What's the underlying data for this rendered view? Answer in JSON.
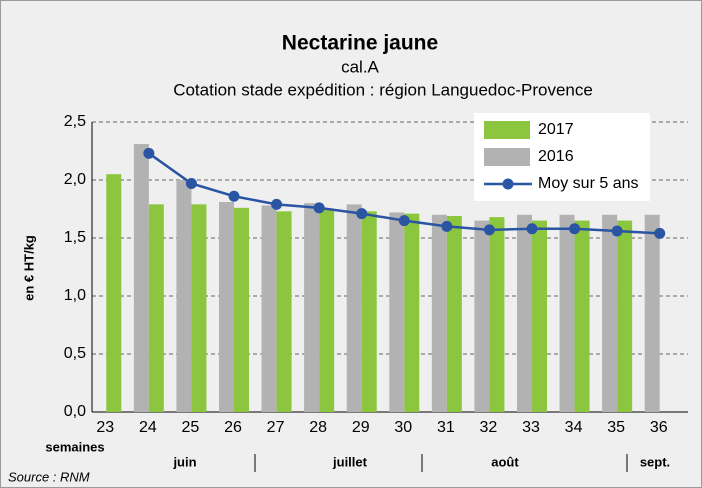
{
  "chart_data": {
    "type": "bar",
    "title": "Nectarine jaune",
    "subtitle": [
      "cal.A",
      "Cotation stade expédition : région Languedoc-Provence"
    ],
    "y_label": "en € HT/kg",
    "x_label": "semaines",
    "months": [
      "juin",
      "juillet",
      "août",
      "sept."
    ],
    "source": "Source : RNM",
    "categories": [
      "23",
      "24",
      "25",
      "26",
      "27",
      "28",
      "29",
      "30",
      "31",
      "32",
      "33",
      "34",
      "35",
      "36"
    ],
    "series": [
      {
        "name": "2016",
        "color": "#b2b2b2",
        "values": [
          null,
          2.31,
          2.0,
          1.81,
          1.78,
          1.8,
          1.79,
          1.72,
          1.7,
          1.65,
          1.7,
          1.7,
          1.7,
          1.7
        ]
      },
      {
        "name": "2017",
        "color": "#8cc63f",
        "values": [
          2.05,
          1.79,
          1.79,
          1.76,
          1.73,
          1.75,
          1.73,
          1.71,
          1.69,
          1.68,
          1.65,
          1.65,
          1.65,
          null
        ]
      },
      {
        "name": "Moy sur 5 ans",
        "type": "line",
        "color": "#2a55a3",
        "values": [
          null,
          2.23,
          1.97,
          1.86,
          1.79,
          1.76,
          1.71,
          1.65,
          1.6,
          1.57,
          1.58,
          1.58,
          1.56,
          1.54
        ]
      }
    ],
    "ylim": [
      0,
      2.5
    ],
    "yticks": [
      {
        "value": 0,
        "label": "0,0"
      },
      {
        "value": 0.5,
        "label": "0,5"
      },
      {
        "value": 1,
        "label": "1,0"
      },
      {
        "value": 1.5,
        "label": "1,5"
      },
      {
        "value": 2,
        "label": "2,0"
      },
      {
        "value": 2.5,
        "label": "2,5"
      }
    ],
    "grid": true
  }
}
